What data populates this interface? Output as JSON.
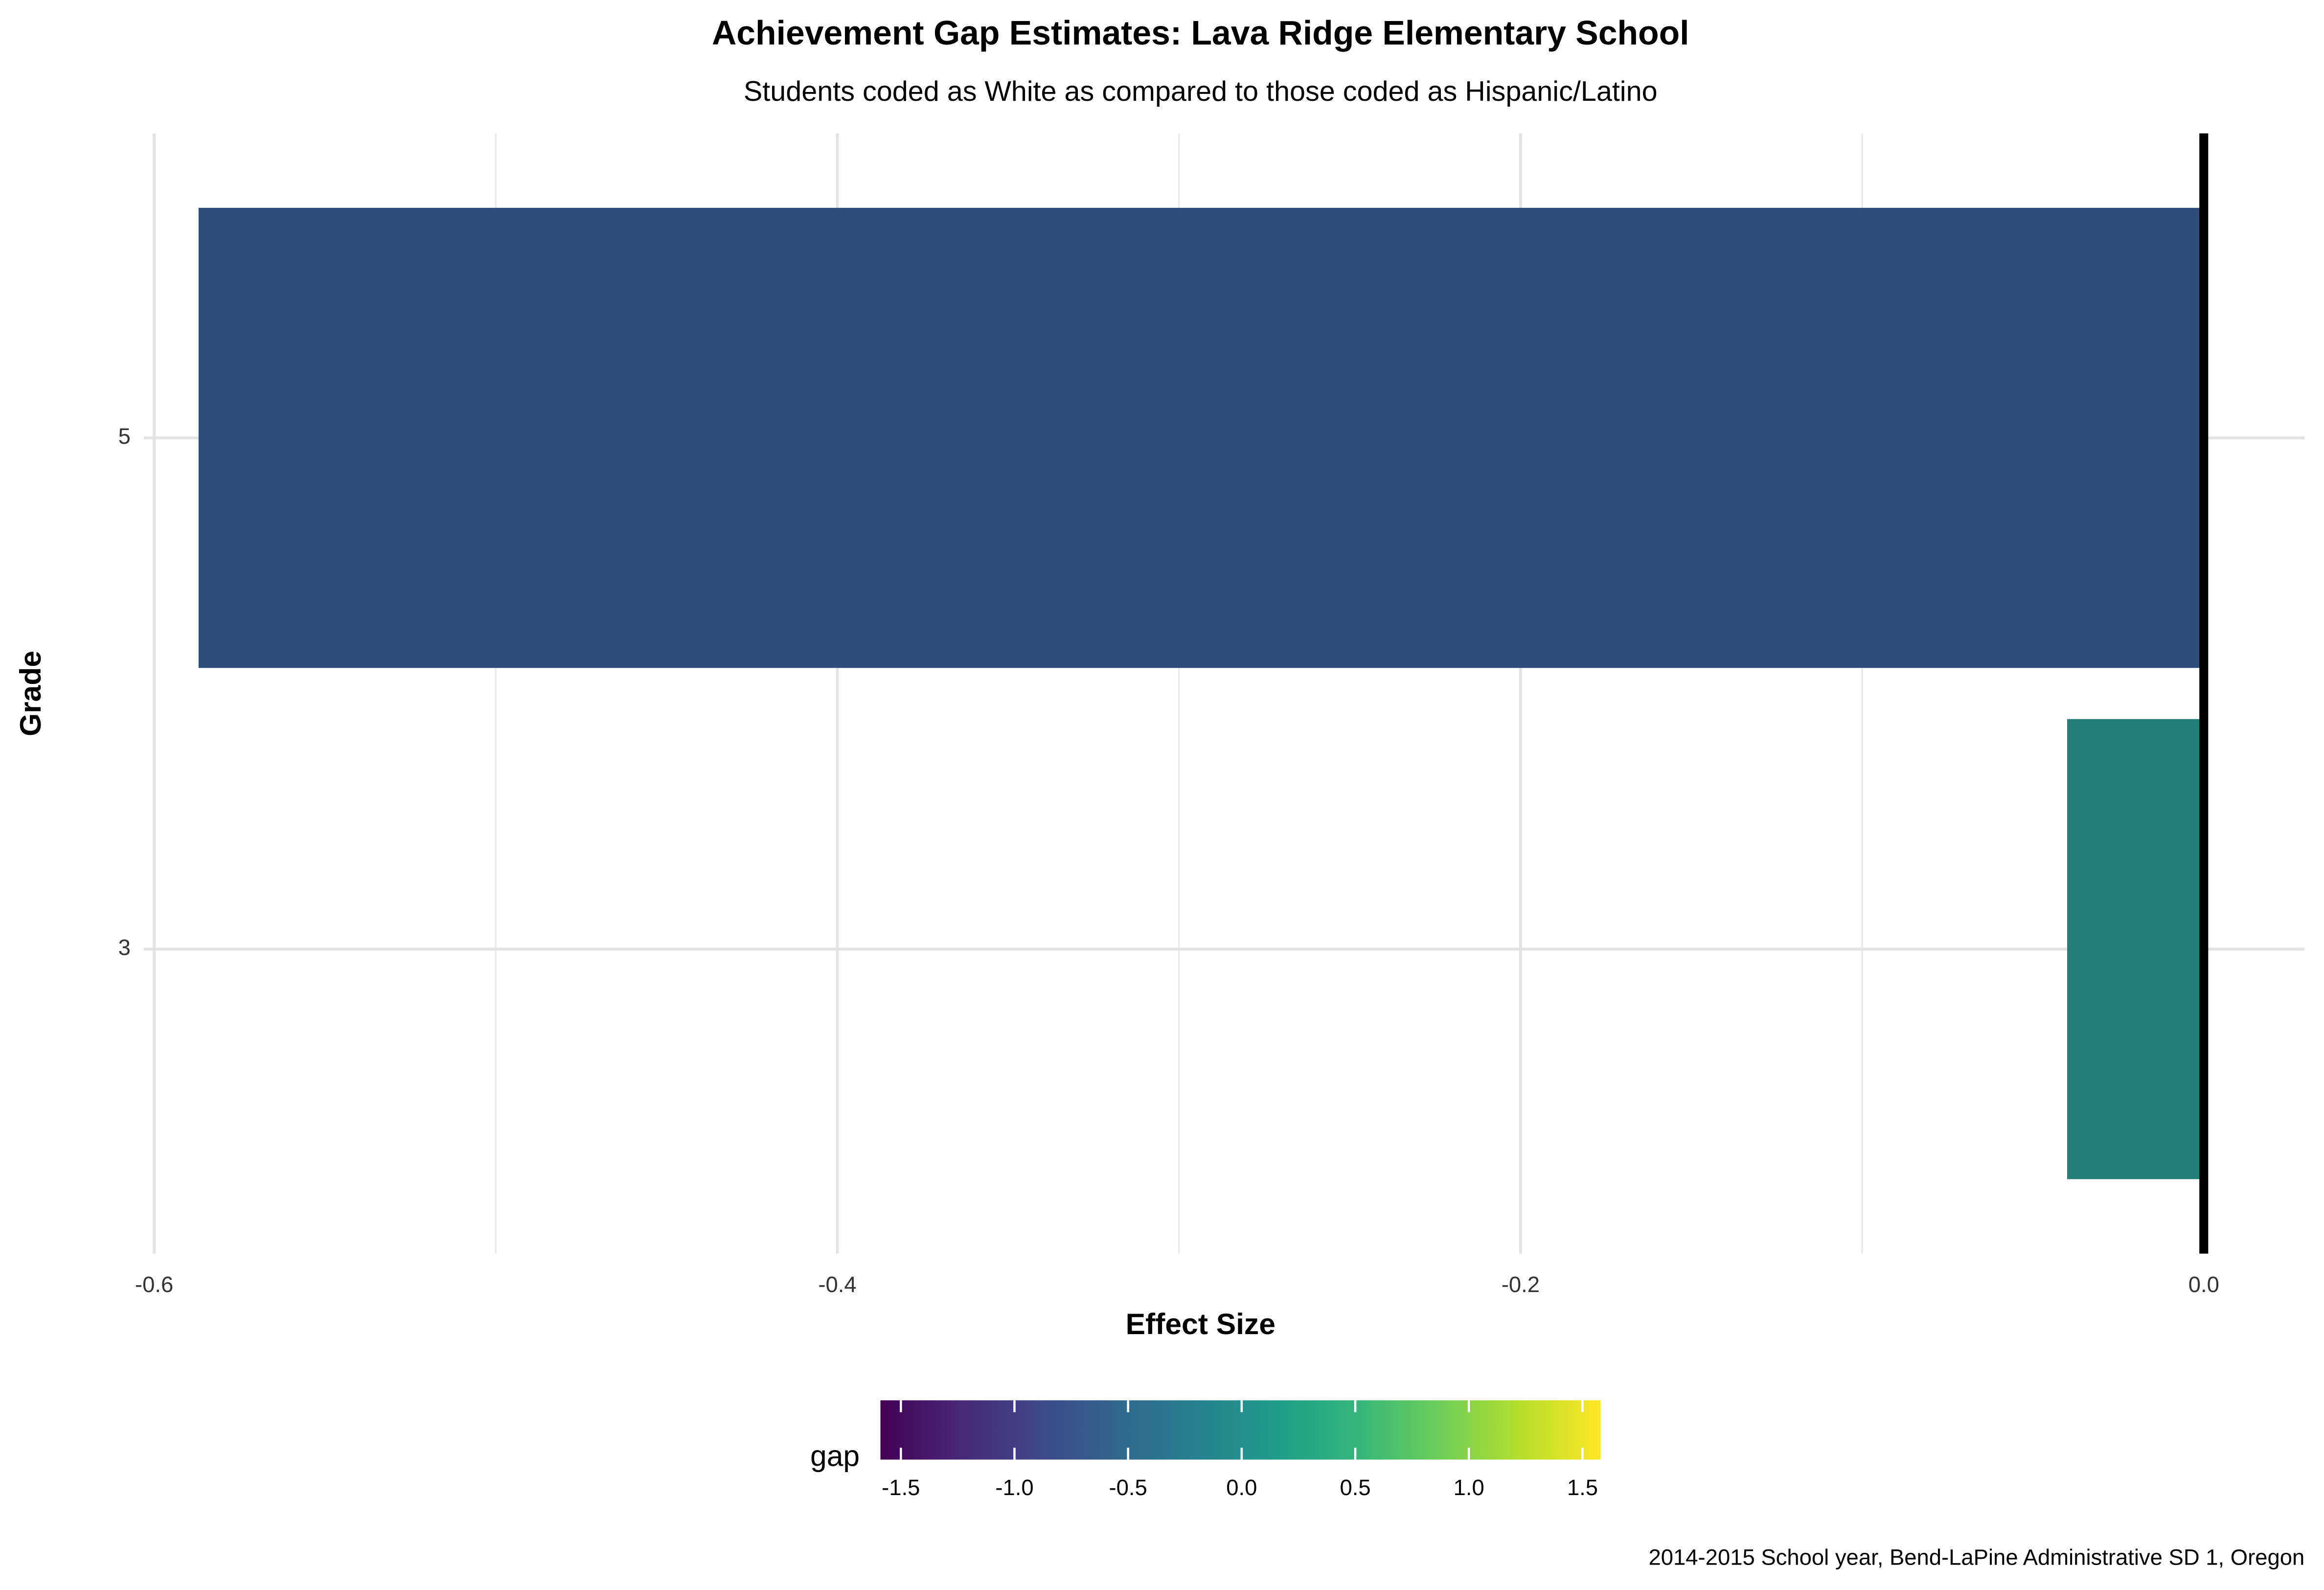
{
  "chart_data": {
    "type": "bar",
    "orientation": "horizontal",
    "title": "Achievement Gap Estimates: Lava Ridge Elementary School",
    "subtitle": "Students coded as White as compared to those coded as Hispanic/Latino",
    "x_label": "Effect Size",
    "y_label": "Grade",
    "caption": "2014-2015 School year, Bend-LaPine Administrative SD 1, Oregon",
    "categories": [
      "5",
      "3"
    ],
    "values": [
      -0.587,
      -0.04
    ],
    "colors": [
      "#2d4e7a",
      "#257d77"
    ],
    "xlim": [
      -0.603,
      0.0295
    ],
    "xticks": [
      -0.6,
      -0.4,
      -0.2,
      {
        "value": 0,
        "label": "0.0"
      }
    ],
    "minor_xticks": [
      -0.5,
      -0.3,
      -0.1
    ],
    "reference_line": 0,
    "grid": true,
    "legend": {
      "title": "gap",
      "position": "bottom",
      "lim": [
        -1.59,
        1.58
      ],
      "ticks": [
        {
          "value": -1.5,
          "label": "-1.5"
        },
        {
          "value": -1,
          "label": "-1.0"
        },
        {
          "value": -0.5,
          "label": "-0.5"
        },
        {
          "value": 0,
          "label": "0.0"
        },
        {
          "value": 0.5,
          "label": "0.5"
        },
        {
          "value": 1,
          "label": "1.0"
        },
        {
          "value": 1.5,
          "label": "1.5"
        }
      ],
      "colorscale": [
        "#440154",
        "#482878",
        "#3e4989",
        "#31688e",
        "#26828e",
        "#1f9e89",
        "#35b779",
        "#6ece58",
        "#b5de2b",
        "#fde725"
      ]
    }
  }
}
